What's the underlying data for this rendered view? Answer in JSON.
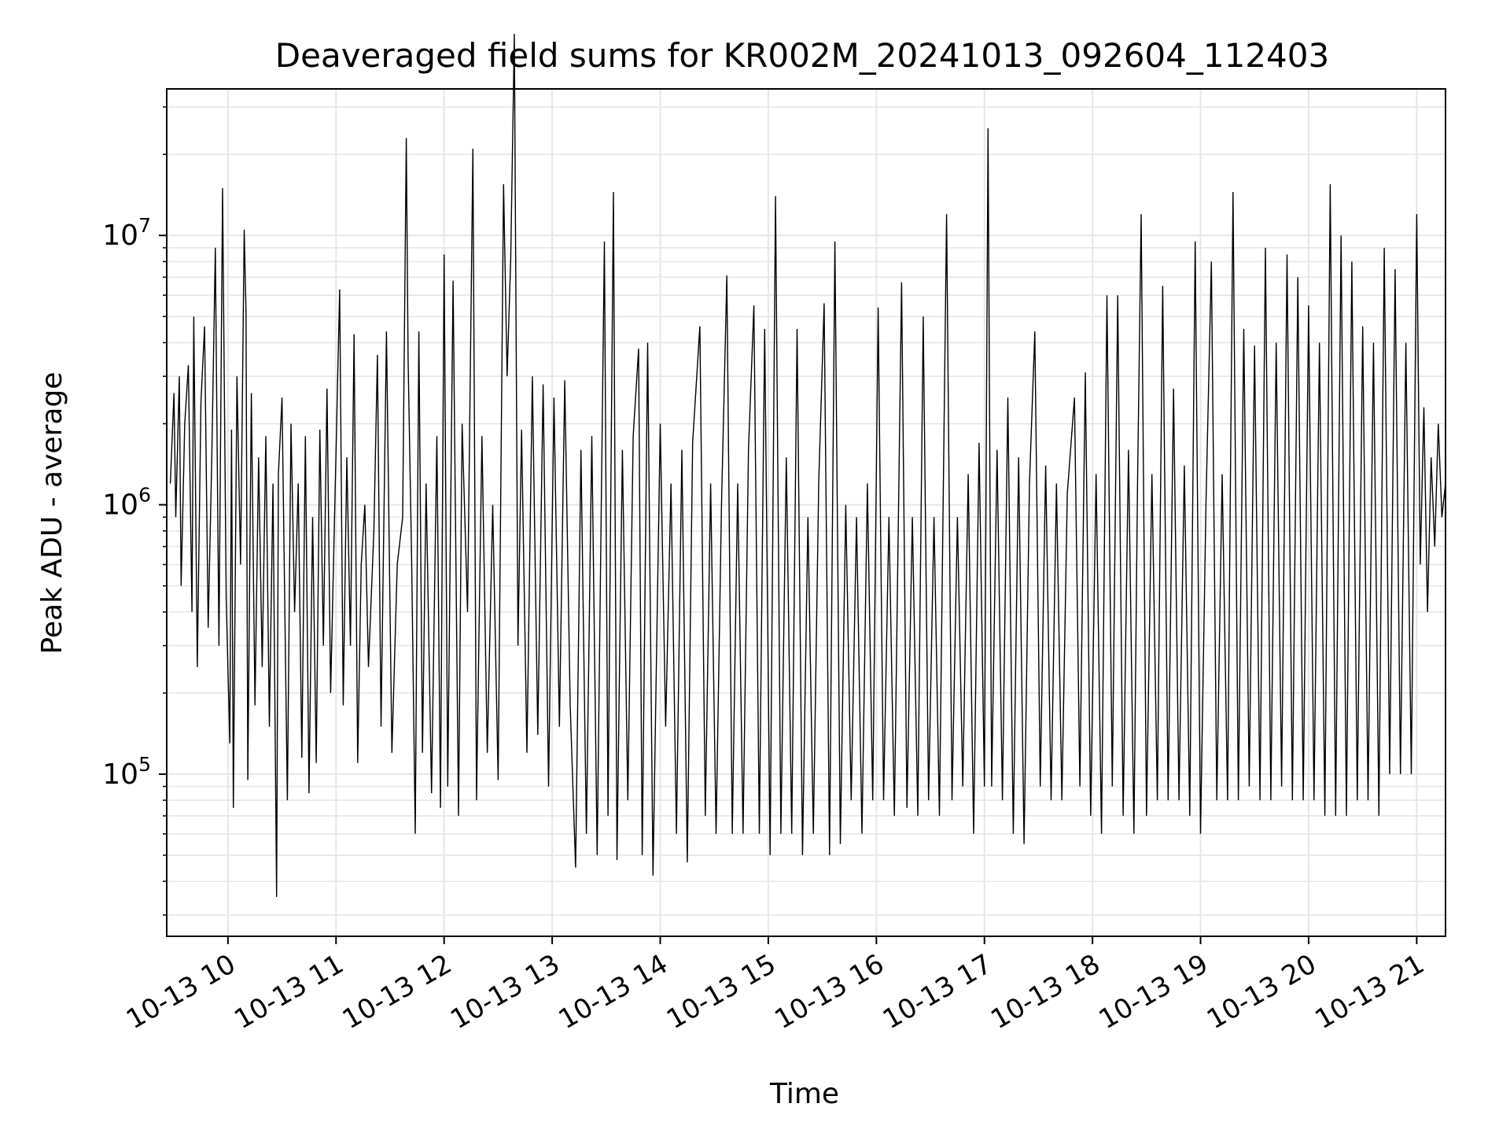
{
  "chart_data": {
    "type": "line",
    "title": "Deaveraged field sums for KR002M_20241013_092604_112403",
    "xlabel": "Time",
    "ylabel": "Peak ADU - average",
    "x_start": "2024-10-13 09:26",
    "x_end": "2024-10-13 21:16",
    "xlim": [
      "2024-10-13 09:26",
      "2024-10-13 21:16"
    ],
    "x_ticks": [
      "2024-10-13 10:00",
      "2024-10-13 11:00",
      "2024-10-13 12:00",
      "2024-10-13 13:00",
      "2024-10-13 14:00",
      "2024-10-13 15:00",
      "2024-10-13 16:00",
      "2024-10-13 17:00",
      "2024-10-13 18:00",
      "2024-10-13 19:00",
      "2024-10-13 20:00",
      "2024-10-13 21:00"
    ],
    "x_tick_labels": [
      "10-13 10",
      "10-13 11",
      "10-13 12",
      "10-13 13",
      "10-13 14",
      "10-13 15",
      "10-13 16",
      "10-13 17",
      "10-13 18",
      "10-13 19",
      "10-13 20",
      "10-13 21"
    ],
    "y_scale": "log",
    "ylim": [
      25000,
      35000000
    ],
    "y_ticks": [
      {
        "value": 100000,
        "base": "10",
        "exp": "5"
      },
      {
        "value": 1000000,
        "base": "10",
        "exp": "6"
      },
      {
        "value": 10000000,
        "base": "10",
        "exp": "7"
      }
    ],
    "grid": true,
    "line_color": "#000000",
    "grid_color": "#e6e6e6",
    "series": [
      {
        "points": [
          [
            "09:28",
            1200000
          ],
          [
            "09:30",
            2600000
          ],
          [
            "09:31",
            900000
          ],
          [
            "09:33",
            3000000
          ],
          [
            "09:34",
            500000
          ],
          [
            "09:36",
            2000000
          ],
          [
            "09:38",
            3300000
          ],
          [
            "09:40",
            400000
          ],
          [
            "09:41",
            5000000
          ],
          [
            "09:43",
            250000
          ],
          [
            "09:45",
            2400000
          ],
          [
            "09:47",
            4600000
          ],
          [
            "09:49",
            350000
          ],
          [
            "09:51",
            1500000
          ],
          [
            "09:53",
            9000000
          ],
          [
            "09:55",
            300000
          ],
          [
            "09:57",
            15000000
          ],
          [
            "09:59",
            450000
          ],
          [
            "10:01",
            130000
          ],
          [
            "10:02",
            1900000
          ],
          [
            "10:03",
            75000
          ],
          [
            "10:05",
            3000000
          ],
          [
            "10:07",
            600000
          ],
          [
            "10:09",
            10500000
          ],
          [
            "10:10",
            5200000
          ],
          [
            "10:11",
            95000
          ],
          [
            "10:13",
            2600000
          ],
          [
            "10:15",
            180000
          ],
          [
            "10:17",
            1500000
          ],
          [
            "10:19",
            250000
          ],
          [
            "10:21",
            1800000
          ],
          [
            "10:23",
            150000
          ],
          [
            "10:25",
            1200000
          ],
          [
            "10:27",
            35000
          ],
          [
            "10:28",
            1300000
          ],
          [
            "10:30",
            2500000
          ],
          [
            "10:33",
            80000
          ],
          [
            "10:35",
            2000000
          ],
          [
            "10:37",
            400000
          ],
          [
            "10:39",
            1200000
          ],
          [
            "10:41",
            115000
          ],
          [
            "10:43",
            1800000
          ],
          [
            "10:45",
            85000
          ],
          [
            "10:47",
            900000
          ],
          [
            "10:49",
            110000
          ],
          [
            "10:51",
            1900000
          ],
          [
            "10:53",
            300000
          ],
          [
            "10:55",
            2700000
          ],
          [
            "10:57",
            200000
          ],
          [
            "10:59",
            800000
          ],
          [
            "11:02",
            6300000
          ],
          [
            "11:04",
            180000
          ],
          [
            "11:06",
            1500000
          ],
          [
            "11:08",
            300000
          ],
          [
            "11:10",
            4300000
          ],
          [
            "11:12",
            110000
          ],
          [
            "11:14",
            600000
          ],
          [
            "11:16",
            1000000
          ],
          [
            "11:18",
            250000
          ],
          [
            "11:21",
            800000
          ],
          [
            "11:23",
            3600000
          ],
          [
            "11:25",
            150000
          ],
          [
            "11:28",
            4400000
          ],
          [
            "11:31",
            120000
          ],
          [
            "11:34",
            600000
          ],
          [
            "11:37",
            900000
          ],
          [
            "11:39",
            23000000
          ],
          [
            "11:40",
            3500000
          ],
          [
            "11:42",
            600000
          ],
          [
            "11:44",
            60000
          ],
          [
            "11:46",
            4400000
          ],
          [
            "11:48",
            120000
          ],
          [
            "11:50",
            1200000
          ],
          [
            "11:53",
            85000
          ],
          [
            "11:56",
            1800000
          ],
          [
            "11:58",
            75000
          ],
          [
            "12:00",
            8500000
          ],
          [
            "12:02",
            90000
          ],
          [
            "12:05",
            6800000
          ],
          [
            "12:08",
            70000
          ],
          [
            "12:10",
            2000000
          ],
          [
            "12:13",
            400000
          ],
          [
            "12:16",
            21000000
          ],
          [
            "12:18",
            80000
          ],
          [
            "12:21",
            1800000
          ],
          [
            "12:24",
            120000
          ],
          [
            "12:27",
            1000000
          ],
          [
            "12:30",
            95000
          ],
          [
            "12:33",
            15500000
          ],
          [
            "12:35",
            3000000
          ],
          [
            "12:37",
            8200000
          ],
          [
            "12:39",
            56000000
          ],
          [
            "12:41",
            300000
          ],
          [
            "12:43",
            1900000
          ],
          [
            "12:46",
            120000
          ],
          [
            "12:49",
            3000000
          ],
          [
            "12:52",
            140000
          ],
          [
            "12:55",
            2800000
          ],
          [
            "12:58",
            90000
          ],
          [
            "13:01",
            2500000
          ],
          [
            "13:04",
            150000
          ],
          [
            "13:07",
            2900000
          ],
          [
            "13:10",
            180000
          ],
          [
            "13:13",
            45000
          ],
          [
            "13:16",
            1600000
          ],
          [
            "13:19",
            60000
          ],
          [
            "13:22",
            1800000
          ],
          [
            "13:25",
            50000
          ],
          [
            "13:29",
            9500000
          ],
          [
            "13:31",
            70000
          ],
          [
            "13:34",
            14500000
          ],
          [
            "13:36",
            48000
          ],
          [
            "13:39",
            1600000
          ],
          [
            "13:42",
            80000
          ],
          [
            "13:45",
            1800000
          ],
          [
            "13:48",
            3800000
          ],
          [
            "13:50",
            50000
          ],
          [
            "13:53",
            4000000
          ],
          [
            "13:56",
            42000
          ],
          [
            "14:00",
            2000000
          ],
          [
            "14:03",
            150000
          ],
          [
            "14:06",
            1200000
          ],
          [
            "14:09",
            60000
          ],
          [
            "14:12",
            1600000
          ],
          [
            "14:15",
            47000
          ],
          [
            "14:18",
            1700000
          ],
          [
            "14:22",
            4600000
          ],
          [
            "14:25",
            70000
          ],
          [
            "14:28",
            1200000
          ],
          [
            "14:31",
            60000
          ],
          [
            "14:34",
            1000000
          ],
          [
            "14:37",
            7100000
          ],
          [
            "14:40",
            60000
          ],
          [
            "14:43",
            1200000
          ],
          [
            "14:46",
            60000
          ],
          [
            "14:49",
            1600000
          ],
          [
            "14:52",
            5500000
          ],
          [
            "14:55",
            60000
          ],
          [
            "14:58",
            4500000
          ],
          [
            "15:01",
            50000
          ],
          [
            "15:04",
            14000000
          ],
          [
            "15:07",
            60000
          ],
          [
            "15:10",
            1500000
          ],
          [
            "15:13",
            60000
          ],
          [
            "15:16",
            4500000
          ],
          [
            "15:19",
            50000
          ],
          [
            "15:22",
            900000
          ],
          [
            "15:25",
            60000
          ],
          [
            "15:28",
            1200000
          ],
          [
            "15:31",
            5600000
          ],
          [
            "15:34",
            50000
          ],
          [
            "15:37",
            9500000
          ],
          [
            "15:40",
            55000
          ],
          [
            "15:43",
            1000000
          ],
          [
            "15:46",
            80000
          ],
          [
            "15:49",
            900000
          ],
          [
            "15:52",
            60000
          ],
          [
            "15:55",
            1200000
          ],
          [
            "15:58",
            80000
          ],
          [
            "16:01",
            5400000
          ],
          [
            "16:04",
            80000
          ],
          [
            "16:07",
            900000
          ],
          [
            "16:10",
            70000
          ],
          [
            "16:14",
            6700000
          ],
          [
            "16:17",
            75000
          ],
          [
            "16:20",
            900000
          ],
          [
            "16:23",
            70000
          ],
          [
            "16:26",
            5000000
          ],
          [
            "16:29",
            80000
          ],
          [
            "16:32",
            900000
          ],
          [
            "16:35",
            70000
          ],
          [
            "16:39",
            12000000
          ],
          [
            "16:42",
            80000
          ],
          [
            "16:45",
            900000
          ],
          [
            "16:48",
            90000
          ],
          [
            "16:51",
            1300000
          ],
          [
            "16:54",
            60000
          ],
          [
            "16:57",
            1700000
          ],
          [
            "17:00",
            90000
          ],
          [
            "17:02",
            25000000
          ],
          [
            "17:04",
            90000
          ],
          [
            "17:07",
            1600000
          ],
          [
            "17:10",
            80000
          ],
          [
            "17:13",
            2500000
          ],
          [
            "17:16",
            60000
          ],
          [
            "17:19",
            1500000
          ],
          [
            "17:22",
            55000
          ],
          [
            "17:25",
            1200000
          ],
          [
            "17:28",
            4400000
          ],
          [
            "17:31",
            90000
          ],
          [
            "17:34",
            1400000
          ],
          [
            "17:37",
            80000
          ],
          [
            "17:40",
            1200000
          ],
          [
            "17:43",
            80000
          ],
          [
            "17:46",
            1100000
          ],
          [
            "17:50",
            2500000
          ],
          [
            "17:53",
            90000
          ],
          [
            "17:56",
            3100000
          ],
          [
            "17:59",
            70000
          ],
          [
            "18:02",
            1300000
          ],
          [
            "18:05",
            60000
          ],
          [
            "18:08",
            6000000
          ],
          [
            "18:11",
            90000
          ],
          [
            "18:14",
            6000000
          ],
          [
            "18:17",
            70000
          ],
          [
            "18:20",
            1600000
          ],
          [
            "18:23",
            60000
          ],
          [
            "18:25",
            1200000
          ],
          [
            "18:27",
            12000000
          ],
          [
            "18:30",
            70000
          ],
          [
            "18:33",
            1300000
          ],
          [
            "18:36",
            80000
          ],
          [
            "18:39",
            6500000
          ],
          [
            "18:42",
            80000
          ],
          [
            "18:45",
            2700000
          ],
          [
            "18:48",
            80000
          ],
          [
            "18:51",
            1400000
          ],
          [
            "18:54",
            70000
          ],
          [
            "18:57",
            9500000
          ],
          [
            "19:00",
            60000
          ],
          [
            "19:03",
            1000000
          ],
          [
            "19:06",
            8000000
          ],
          [
            "19:09",
            80000
          ],
          [
            "19:12",
            1300000
          ],
          [
            "19:15",
            80000
          ],
          [
            "19:18",
            14500000
          ],
          [
            "19:21",
            80000
          ],
          [
            "19:24",
            4500000
          ],
          [
            "19:27",
            90000
          ],
          [
            "19:30",
            3900000
          ],
          [
            "19:33",
            80000
          ],
          [
            "19:36",
            9000000
          ],
          [
            "19:39",
            80000
          ],
          [
            "19:42",
            4000000
          ],
          [
            "19:45",
            90000
          ],
          [
            "19:48",
            8500000
          ],
          [
            "19:51",
            80000
          ],
          [
            "19:54",
            7000000
          ],
          [
            "19:57",
            80000
          ],
          [
            "20:00",
            5500000
          ],
          [
            "20:03",
            80000
          ],
          [
            "20:06",
            4000000
          ],
          [
            "20:09",
            70000
          ],
          [
            "20:12",
            15500000
          ],
          [
            "20:15",
            70000
          ],
          [
            "20:18",
            10000000
          ],
          [
            "20:21",
            70000
          ],
          [
            "20:24",
            8000000
          ],
          [
            "20:27",
            80000
          ],
          [
            "20:30",
            4600000
          ],
          [
            "20:33",
            80000
          ],
          [
            "20:36",
            4000000
          ],
          [
            "20:39",
            70000
          ],
          [
            "20:42",
            9000000
          ],
          [
            "20:45",
            100000
          ],
          [
            "20:48",
            7500000
          ],
          [
            "20:51",
            100000
          ],
          [
            "20:54",
            4000000
          ],
          [
            "20:57",
            100000
          ],
          [
            "21:00",
            12000000
          ],
          [
            "21:02",
            600000
          ],
          [
            "21:04",
            2300000
          ],
          [
            "21:06",
            400000
          ],
          [
            "21:08",
            1500000
          ],
          [
            "21:10",
            700000
          ],
          [
            "21:12",
            2000000
          ],
          [
            "21:14",
            900000
          ],
          [
            "21:16",
            1200000
          ]
        ]
      }
    ]
  }
}
